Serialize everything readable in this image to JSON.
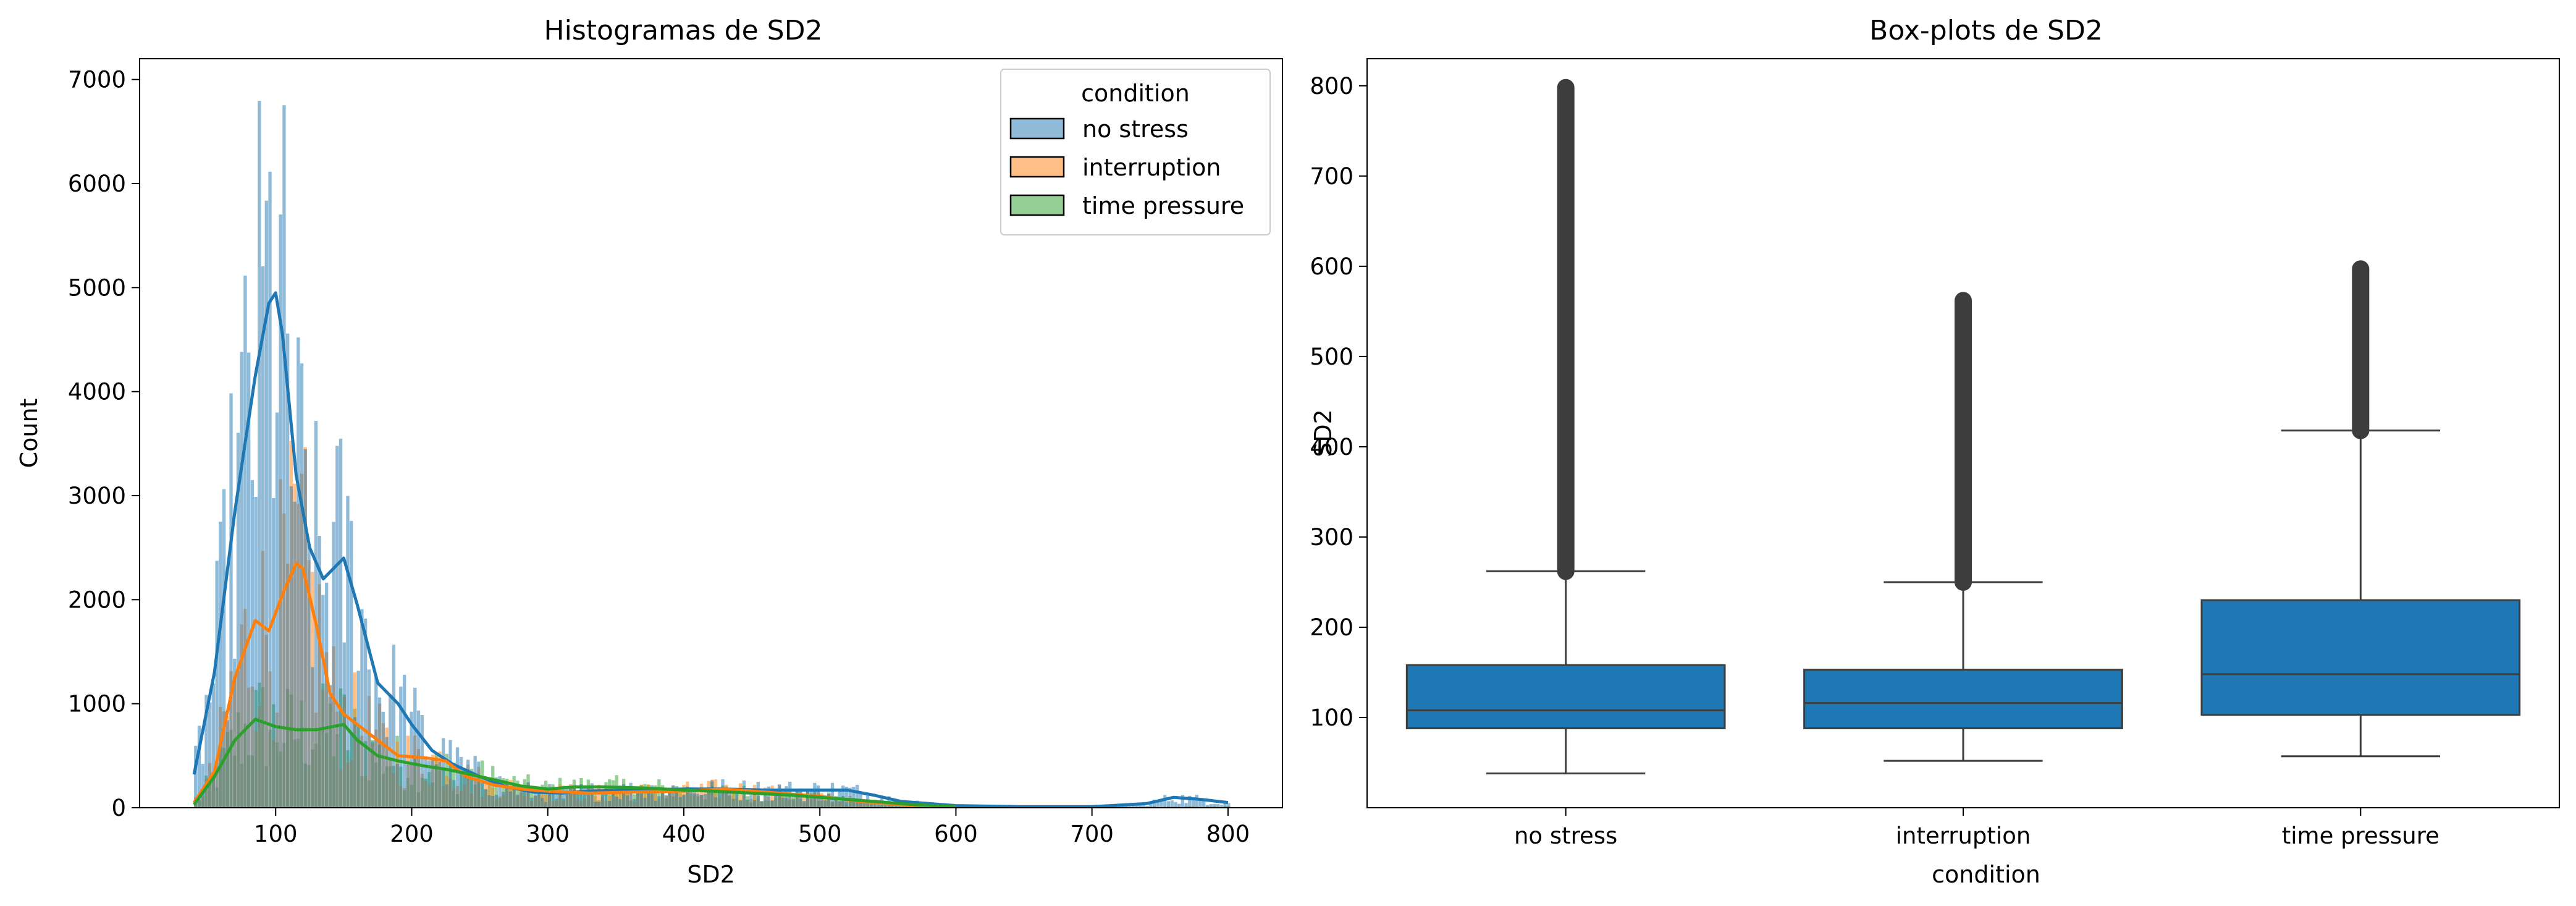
{
  "chart_data": [
    {
      "type": "histogram",
      "title": "Histogramas de SD2",
      "xlabel": "SD2",
      "ylabel": "Count",
      "xlim": [
        0,
        840
      ],
      "ylim": [
        0,
        7200
      ],
      "xticks": [
        100,
        200,
        300,
        400,
        500,
        600,
        700,
        800
      ],
      "yticks": [
        0,
        1000,
        2000,
        3000,
        4000,
        5000,
        6000,
        7000
      ],
      "legend": {
        "title": "condition",
        "placement": "top-right",
        "items": [
          "no stress",
          "interruption",
          "time pressure"
        ]
      },
      "colors": [
        "#1f77b4",
        "#ff7f0e",
        "#2ca02c"
      ],
      "series": [
        {
          "name": "no stress",
          "kde_x": [
            40,
            55,
            70,
            85,
            95,
            100,
            105,
            115,
            125,
            135,
            150,
            160,
            175,
            190,
            200,
            215,
            230,
            250,
            270,
            290,
            310,
            330,
            360,
            400,
            430,
            460,
            490,
            520,
            540,
            560,
            600,
            650,
            700,
            740,
            760,
            780,
            800
          ],
          "kde_y": [
            320,
            1300,
            2850,
            4150,
            4850,
            4950,
            4550,
            3200,
            2500,
            2200,
            2400,
            1950,
            1200,
            1000,
            800,
            550,
            420,
            300,
            200,
            150,
            140,
            160,
            170,
            180,
            180,
            170,
            170,
            170,
            120,
            60,
            20,
            10,
            10,
            40,
            100,
            80,
            50
          ]
        },
        {
          "name": "interruption",
          "kde_x": [
            40,
            55,
            70,
            85,
            95,
            105,
            115,
            120,
            130,
            140,
            150,
            160,
            175,
            190,
            210,
            225,
            240,
            260,
            280,
            300,
            330,
            360,
            400,
            430,
            460,
            500,
            530,
            560,
            600
          ],
          "kde_y": [
            50,
            350,
            1250,
            1800,
            1700,
            2050,
            2350,
            2300,
            1750,
            1100,
            900,
            800,
            650,
            500,
            480,
            450,
            300,
            220,
            180,
            160,
            140,
            150,
            160,
            180,
            150,
            110,
            60,
            30,
            10
          ]
        },
        {
          "name": "time pressure",
          "kde_x": [
            40,
            55,
            70,
            85,
            100,
            115,
            130,
            150,
            160,
            175,
            190,
            210,
            225,
            240,
            260,
            280,
            300,
            320,
            340,
            370,
            400,
            420,
            450,
            480,
            510,
            540,
            570,
            600
          ],
          "kde_y": [
            30,
            300,
            650,
            850,
            780,
            750,
            750,
            800,
            650,
            500,
            450,
            400,
            370,
            330,
            270,
            210,
            180,
            200,
            200,
            190,
            170,
            160,
            140,
            120,
            90,
            60,
            30,
            10
          ]
        }
      ]
    },
    {
      "type": "box",
      "title": "Box-plots de SD2",
      "xlabel": "condition",
      "ylabel": "SD2",
      "ylim": [
        0,
        830
      ],
      "yticks": [
        100,
        200,
        300,
        400,
        500,
        600,
        700,
        800
      ],
      "categories": [
        "no stress",
        "interruption",
        "time pressure"
      ],
      "color": "#1f77b4",
      "boxes": [
        {
          "name": "no stress",
          "whisker_low": 38,
          "q1": 88,
          "median": 108,
          "q3": 158,
          "whisker_high": 262,
          "outlier_min": 262,
          "outlier_max": 798
        },
        {
          "name": "interruption",
          "whisker_low": 52,
          "q1": 88,
          "median": 116,
          "q3": 153,
          "whisker_high": 250,
          "outlier_min": 250,
          "outlier_max": 562
        },
        {
          "name": "time pressure",
          "whisker_low": 57,
          "q1": 103,
          "median": 148,
          "q3": 230,
          "whisker_high": 418,
          "outlier_min": 418,
          "outlier_max": 597
        }
      ]
    }
  ]
}
